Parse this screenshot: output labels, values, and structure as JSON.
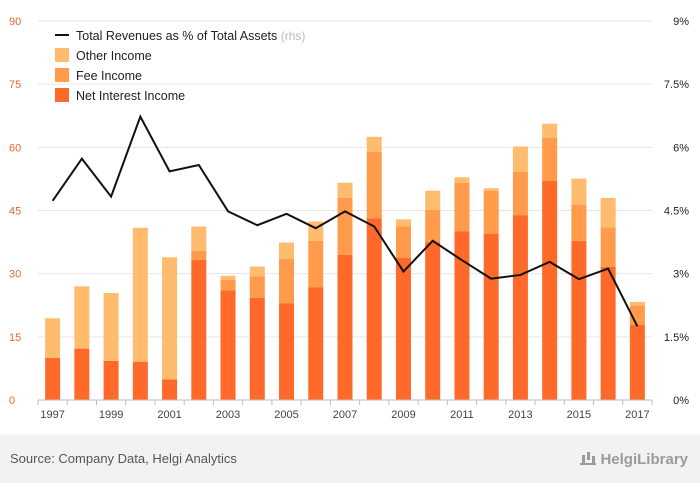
{
  "chart_data": {
    "type": "bar",
    "stacked": true,
    "categories": [
      "1997",
      "1998",
      "1999",
      "2000",
      "2001",
      "2002",
      "2003",
      "2004",
      "2005",
      "2006",
      "2007",
      "2008",
      "2009",
      "2010",
      "2011",
      "2012",
      "2013",
      "2014",
      "2015",
      "2016",
      "2017"
    ],
    "x_tick_labels": [
      "1997",
      "",
      "1999",
      "",
      "2001",
      "",
      "2003",
      "",
      "2005",
      "",
      "2007",
      "",
      "2009",
      "",
      "2011",
      "",
      "2013",
      "",
      "2015",
      "",
      "2017"
    ],
    "series": [
      {
        "name": "Net Interest Income",
        "color": "#ff6a2b",
        "values": [
          10,
          12.2,
          9.3,
          9.1,
          4.9,
          33.3,
          26,
          24.3,
          23,
          26.8,
          34.5,
          43.1,
          33.8,
          37.4,
          40.1,
          39.5,
          43.9,
          52,
          37.8,
          31.6,
          17.8
        ]
      },
      {
        "name": "Fee Income",
        "color": "#ff9b4a",
        "values": [
          0,
          0,
          0,
          0,
          0,
          2.1,
          2.5,
          5.1,
          10.5,
          11,
          13.5,
          15.8,
          7.4,
          7.8,
          11.5,
          10.2,
          10.3,
          10.3,
          8.6,
          9.4,
          4.7
        ]
      },
      {
        "name": "Other Income",
        "color": "#ffbb6e",
        "values": [
          9.4,
          14.8,
          16.1,
          31.8,
          29,
          5.8,
          1,
          2.3,
          3.9,
          4.6,
          3.6,
          3.6,
          1.7,
          4.5,
          1.3,
          0.6,
          6,
          3.3,
          6.2,
          7,
          0.8
        ]
      }
    ],
    "line": {
      "name": "Total Revenues as % of Total Assets",
      "suffix": "(rhs)",
      "color": "#111111",
      "values": [
        4.73,
        5.73,
        4.83,
        6.73,
        5.43,
        5.58,
        4.48,
        4.15,
        4.42,
        4.08,
        4.48,
        4.12,
        3.05,
        3.78,
        3.32,
        2.88,
        2.97,
        3.28,
        2.87,
        3.12,
        1.75
      ]
    },
    "yleft": {
      "min": 0,
      "max": 90,
      "ticks": [
        "0",
        "15",
        "30",
        "45",
        "60",
        "75",
        "90"
      ],
      "values": [
        0,
        15,
        30,
        45,
        60,
        75,
        90
      ]
    },
    "yright": {
      "min": 0,
      "max": 9,
      "ticks": [
        "0%",
        "1.5%",
        "3%",
        "4.5%",
        "6%",
        "7.5%",
        "9%"
      ],
      "values": [
        0,
        1.5,
        3,
        4.5,
        6,
        7.5,
        9
      ]
    },
    "grid": true,
    "legend_position": "top-left"
  },
  "legend": {
    "line_label": "Total Revenues as % of Total Assets",
    "line_suffix": "(rhs)",
    "other": "Other Income",
    "fee": "Fee Income",
    "nii": "Net Interest Income"
  },
  "footer": {
    "source": "Source: Company Data, Helgi Analytics",
    "brand": "HelgiLibrary"
  }
}
